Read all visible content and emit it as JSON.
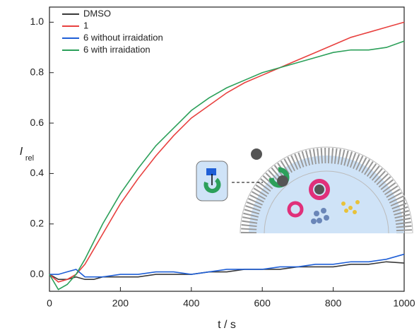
{
  "chart_data": {
    "type": "line",
    "xlabel": "t / s",
    "ylabel": "I",
    "ylabel_subscript": "rel",
    "x": [
      0,
      25,
      50,
      75,
      100,
      125,
      150,
      200,
      250,
      300,
      350,
      400,
      450,
      500,
      550,
      600,
      650,
      700,
      750,
      800,
      850,
      900,
      950,
      1000
    ],
    "series": [
      {
        "name": "DMSO",
        "color": "#3a3a3a",
        "values": [
          0,
          -0.02,
          -0.02,
          -0.01,
          -0.02,
          -0.02,
          -0.01,
          -0.01,
          -0.01,
          0.0,
          0.0,
          0.0,
          0.01,
          0.01,
          0.02,
          0.02,
          0.02,
          0.03,
          0.03,
          0.03,
          0.04,
          0.04,
          0.05,
          0.045
        ]
      },
      {
        "name": "1",
        "color": "#e8413f",
        "values": [
          0,
          -0.03,
          -0.02,
          0.0,
          0.04,
          0.1,
          0.16,
          0.28,
          0.38,
          0.47,
          0.55,
          0.62,
          0.67,
          0.72,
          0.76,
          0.79,
          0.82,
          0.85,
          0.88,
          0.91,
          0.94,
          0.96,
          0.98,
          1.0
        ]
      },
      {
        "name": "6 without irraidation",
        "color": "#1f5fd6",
        "values": [
          0,
          0.0,
          0.01,
          0.02,
          -0.01,
          -0.01,
          -0.01,
          0.0,
          0.0,
          0.01,
          0.01,
          0.0,
          0.01,
          0.02,
          0.02,
          0.02,
          0.03,
          0.03,
          0.04,
          0.04,
          0.05,
          0.05,
          0.06,
          0.08
        ]
      },
      {
        "name": "6 with irraidation",
        "color": "#2ca05a",
        "values": [
          0,
          -0.06,
          -0.04,
          0.0,
          0.06,
          0.13,
          0.2,
          0.32,
          0.42,
          0.51,
          0.58,
          0.65,
          0.7,
          0.74,
          0.77,
          0.8,
          0.82,
          0.84,
          0.86,
          0.88,
          0.89,
          0.89,
          0.9,
          0.925
        ]
      }
    ],
    "xlim": [
      0,
      1000
    ],
    "xticks": [
      0,
      200,
      400,
      600,
      800,
      1000
    ],
    "ylim": [
      -0.067,
      1.06
    ],
    "yticks": [
      {
        "value": 0,
        "label": "0.0"
      },
      0.2,
      0.4,
      0.6,
      0.8,
      {
        "value": 1,
        "label": "1.0"
      }
    ],
    "legend": "top-left"
  }
}
